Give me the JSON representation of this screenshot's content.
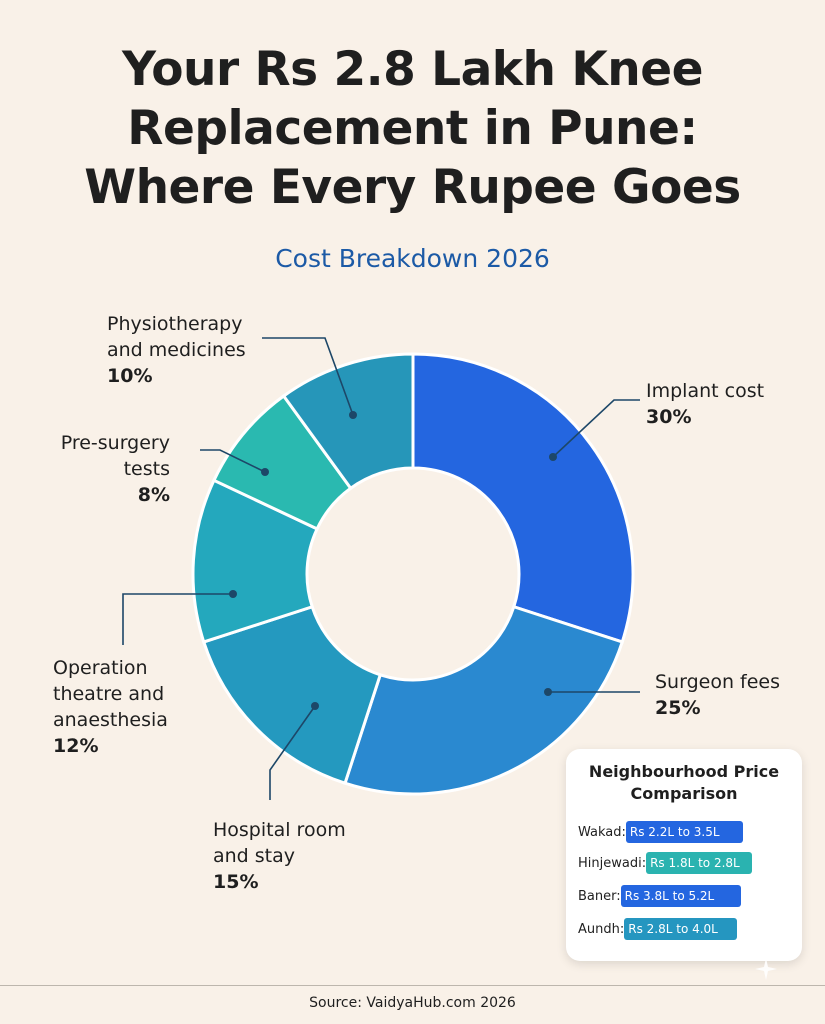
{
  "chart_data": {
    "type": "pie",
    "title": "Your Rs 2.8 Lakh Knee Replacement in Pune: Where Every Rupee Goes",
    "subtitle": "Cost Breakdown 2026",
    "slices": [
      {
        "label": "Implant cost",
        "value": 30,
        "display": "30%",
        "color": "#2466e0"
      },
      {
        "label": "Surgeon fees",
        "value": 25,
        "display": "25%",
        "color": "#2a89d0"
      },
      {
        "label": "Hospital room\nand stay",
        "value": 15,
        "display": "15%",
        "color": "#2499bf"
      },
      {
        "label": "Operation\ntheatre and\nanaesthesia",
        "value": 12,
        "display": "12%",
        "color": "#24a8bd"
      },
      {
        "label": "Pre-surgery\ntests",
        "value": 8,
        "display": "8%",
        "color": "#2ab9b0"
      },
      {
        "label": "Physiotherapy\nand medicines",
        "value": 10,
        "display": "10%",
        "color": "#2696b9"
      }
    ]
  },
  "comparison": {
    "title": "Neighbourhood Price\nComparison",
    "rows": [
      {
        "name": "Wakad:",
        "range": "Rs 2.2L to 3.5L",
        "min": 2.2,
        "max": 3.5,
        "color": "#2466e0"
      },
      {
        "name": "Hinjewadi:",
        "range": "Rs 1.8L to 2.8L",
        "min": 1.8,
        "max": 2.8,
        "color": "#2ab3b0"
      },
      {
        "name": "Baner:",
        "range": "Rs 3.8L to 5.2L",
        "min": 3.8,
        "max": 5.2,
        "color": "#2466e0"
      },
      {
        "name": "Aundh:",
        "range": "Rs 2.8L to 4.0L",
        "min": 2.8,
        "max": 4.0,
        "color": "#2596c0"
      }
    ]
  },
  "source": "Source: VaidyaHub.com 2026"
}
